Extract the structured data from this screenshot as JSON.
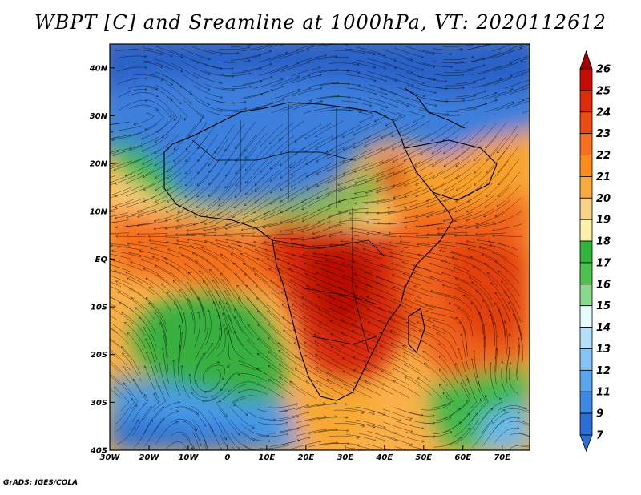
{
  "title": "WBPT [C] and Sreamline at 1000hPa, VT: 2020112612",
  "credit": "GrADS: IGES/COLA",
  "map": {
    "lon_range": [
      -30,
      77
    ],
    "lat_range": [
      -40,
      45
    ],
    "x_ticks": [
      "30W",
      "20W",
      "10W",
      "0",
      "10E",
      "20E",
      "30E",
      "40E",
      "50E",
      "60E",
      "70E"
    ],
    "y_ticks": [
      "40N",
      "30N",
      "20N",
      "10N",
      "EQ",
      "10S",
      "20S",
      "30S",
      "40S"
    ]
  },
  "colorbar": {
    "labels": [
      "26",
      "25",
      "24",
      "23",
      "22",
      "21",
      "20",
      "19",
      "18",
      "17",
      "16",
      "15",
      "14",
      "13",
      "12",
      "11",
      "9",
      "7"
    ],
    "colors": [
      "#a50000",
      "#c80a00",
      "#e02a0a",
      "#ef4a12",
      "#f86e1e",
      "#fc8c1e",
      "#f8aa3c",
      "#fbd286",
      "#fff2a6",
      "#30b43c",
      "#4ac24c",
      "#8cd88c",
      "#e6fbfb",
      "#b4e0fa",
      "#86c4f6",
      "#5aa6ee",
      "#3c88e4",
      "#2a6ed6",
      "#2a6ed6"
    ]
  }
}
